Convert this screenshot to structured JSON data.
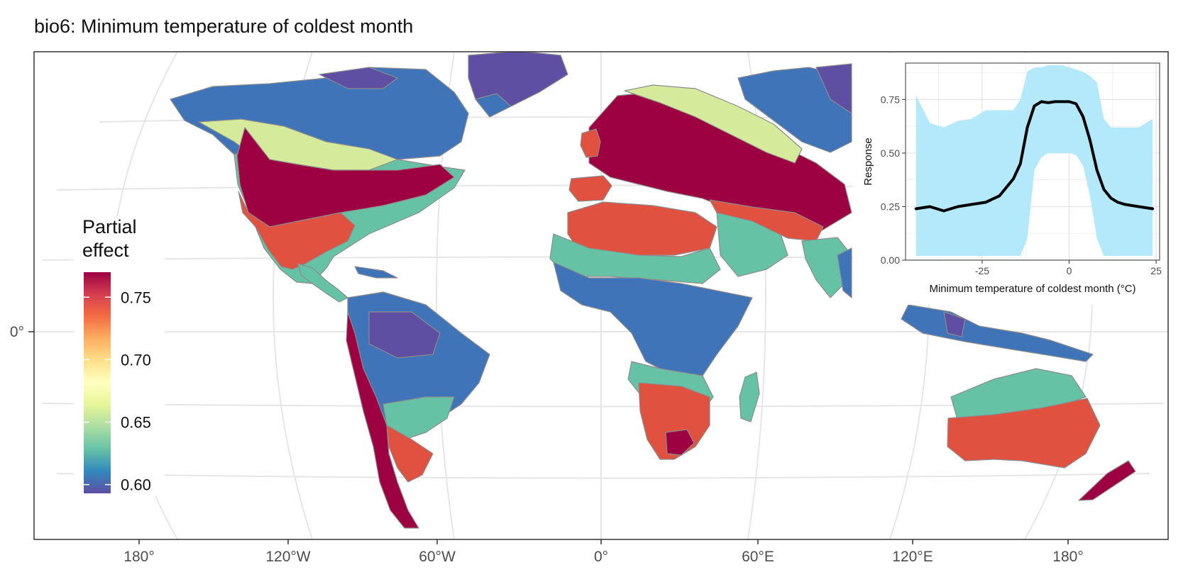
{
  "title": "bio6: Minimum temperature of coldest month",
  "map": {
    "lon_labels": [
      "180°",
      "120°W",
      "60°W",
      "0°",
      "60°E",
      "120°E",
      "180°"
    ],
    "lat_labels": [
      "0°"
    ],
    "colors": {
      "high": "#9e0142",
      "red": "#e0513f",
      "teal": "#66c2a5",
      "blue": "#3f74b8",
      "purple": "#5e4fa2",
      "lightgreen": "#d5ea9b",
      "border": "#8c8c8c",
      "graticule": "#e6e6e6"
    }
  },
  "legend": {
    "title": "Partial\neffect",
    "title_lines": [
      "Partial",
      "effect"
    ],
    "ticks": [
      "0.75",
      "0.70",
      "0.65",
      "0.60"
    ],
    "tick_values": [
      0.75,
      0.7,
      0.65,
      0.6
    ],
    "range": [
      0.593,
      0.77
    ],
    "stops": [
      "#9e0142",
      "#d53e4f",
      "#f46d43",
      "#fdae61",
      "#fee08b",
      "#ffffbf",
      "#e6f598",
      "#abdda4",
      "#66c2a5",
      "#3288bd",
      "#5e4fa2"
    ]
  },
  "chart_data": {
    "type": "line",
    "xlabel": "Minimum temperature of coldest month (°C)",
    "ylabel": "Response",
    "xlim": [
      -47,
      26
    ],
    "ylim": [
      0,
      0.92
    ],
    "x_ticks": [
      -25,
      0,
      25
    ],
    "x_tick_labels": [
      "-25",
      "0",
      "25"
    ],
    "y_ticks": [
      0,
      0.25,
      0.5,
      0.75
    ],
    "y_tick_labels": [
      "0.00",
      "0.25",
      "0.50",
      "0.75"
    ],
    "grid": true,
    "ribbon_color": "#b3e9fb",
    "line_color": "#000000",
    "series": [
      {
        "x": [
          -44,
          -40,
          -36,
          -32,
          -28,
          -24,
          -20,
          -16,
          -14,
          -12,
          -10,
          -8,
          -6,
          -4,
          -2,
          0,
          2,
          4,
          6,
          8,
          10,
          12,
          14,
          16,
          20,
          24
        ],
        "y": [
          0.24,
          0.25,
          0.23,
          0.25,
          0.26,
          0.27,
          0.3,
          0.38,
          0.45,
          0.62,
          0.72,
          0.74,
          0.735,
          0.74,
          0.74,
          0.74,
          0.73,
          0.67,
          0.56,
          0.42,
          0.33,
          0.29,
          0.27,
          0.26,
          0.25,
          0.24
        ],
        "lower": [
          0.02,
          0.02,
          0.02,
          0.02,
          0.02,
          0.02,
          0.02,
          0.02,
          0.02,
          0.1,
          0.42,
          0.48,
          0.5,
          0.5,
          0.5,
          0.5,
          0.49,
          0.44,
          0.3,
          0.1,
          0.02,
          0.02,
          0.02,
          0.02,
          0.02,
          0.02
        ],
        "upper": [
          0.77,
          0.64,
          0.62,
          0.65,
          0.66,
          0.7,
          0.7,
          0.7,
          0.75,
          0.88,
          0.9,
          0.9,
          0.91,
          0.91,
          0.91,
          0.9,
          0.89,
          0.88,
          0.86,
          0.83,
          0.66,
          0.62,
          0.62,
          0.62,
          0.62,
          0.66
        ]
      }
    ]
  }
}
